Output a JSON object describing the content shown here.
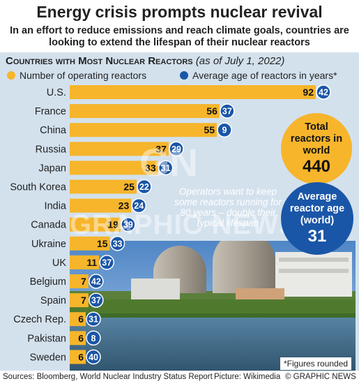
{
  "header": {
    "title": "Energy crisis prompts nuclear revival",
    "subtitle": "In an effort to reduce emissions and reach climate goals, countries are looking to extend the lifespan of their nuclear reactors"
  },
  "chart_heading": {
    "caps": "Countries with Most Nuclear Reactors",
    "date": "(as of July 1, 2022)"
  },
  "legend": {
    "reactors": "Number of operating reactors",
    "age": "Average age of reactors in years*"
  },
  "colors": {
    "bar": "#f6b52b",
    "age_dot": "#1a56a8",
    "panel": "#d3e1ed"
  },
  "chart_data": {
    "type": "bar",
    "orientation": "horizontal",
    "categories": [
      "U.S.",
      "France",
      "China",
      "Russia",
      "Japan",
      "South Korea",
      "India",
      "Canada",
      "Ukraine",
      "UK",
      "Belgium",
      "Spain",
      "Czech Rep.",
      "Pakistan",
      "Sweden"
    ],
    "series": [
      {
        "name": "Number of operating reactors",
        "values": [
          92,
          56,
          55,
          37,
          33,
          25,
          23,
          19,
          15,
          11,
          7,
          7,
          6,
          6,
          6
        ]
      },
      {
        "name": "Average age of reactors in years*",
        "values": [
          42,
          37,
          9,
          29,
          31,
          22,
          24,
          39,
          33,
          37,
          42,
          37,
          31,
          8,
          40
        ]
      }
    ],
    "xlim": [
      0,
      92
    ],
    "grid": false,
    "legend_position": "top"
  },
  "callouts": {
    "total_label": "Total reactors in world",
    "total_value": "440",
    "age_label": "Average reactor age (world)",
    "age_value": "31",
    "note": "Operators want to keep some reactors running for 80 years – double their typical lifespan"
  },
  "watermark": {
    "logo": "GN",
    "text": "GRAPHIC NEWS"
  },
  "footnote": "*Figures rounded",
  "footer": {
    "sources": "Sources: Bloomberg, World Nuclear Industry Status Report",
    "picture": "Picture: Wikimedia",
    "copyright": "© GRAPHIC NEWS"
  }
}
